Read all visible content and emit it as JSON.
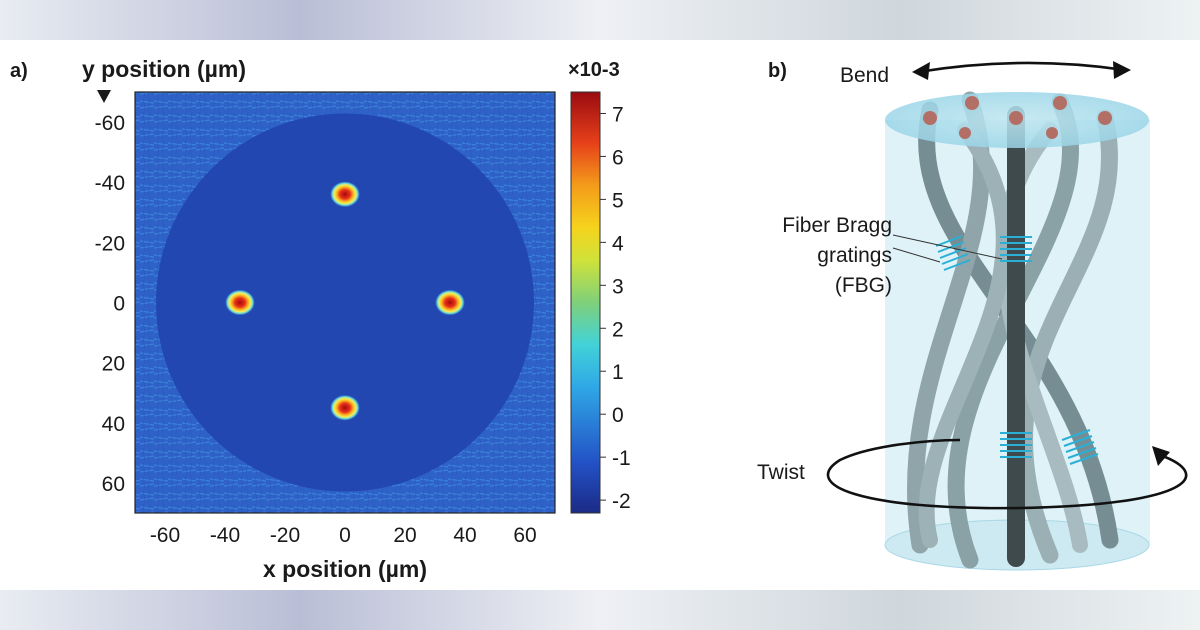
{
  "panel_a": {
    "label": "a)",
    "y_axis_label": "y position (µm)",
    "x_axis_label": "x position (µm)",
    "y_ticks": [
      "-60",
      "-40",
      "-20",
      "0",
      "20",
      "40",
      "60"
    ],
    "x_ticks": [
      "-60",
      "-40",
      "-20",
      "0",
      "20",
      "40",
      "60"
    ],
    "colorbar_exponent_label": "×10-3",
    "colorbar_ticks": [
      "7",
      "6",
      "5",
      "4",
      "3",
      "2",
      "1",
      "0",
      "-1",
      "-2"
    ]
  },
  "panel_b": {
    "label": "b)",
    "bend_label": "Bend",
    "twist_label": "Twist",
    "fbg_label_lines": [
      "Fiber Bragg",
      "gratings",
      "(FBG)"
    ]
  },
  "chart_data": {
    "type": "heatmap",
    "xlabel": "x position (µm)",
    "ylabel": "y position (µm)",
    "xlim": [
      -70,
      70
    ],
    "ylim": [
      -70,
      70
    ],
    "y_axis_inverted": true,
    "colorbar_range": [
      -2.3,
      7.5
    ],
    "colorbar_scale": "×10-3",
    "cores": [
      {
        "x": 0,
        "y": -36,
        "value": 7.3
      },
      {
        "x": -35,
        "y": 0,
        "value": 7.3
      },
      {
        "x": 35,
        "y": 0,
        "value": 7.3
      },
      {
        "x": 0,
        "y": 35,
        "value": 7.3
      }
    ],
    "cladding_radius": 63,
    "colors": {
      "low": "#1f3fa8",
      "mid": "#3ec3e6",
      "high": "#b40e12"
    }
  }
}
